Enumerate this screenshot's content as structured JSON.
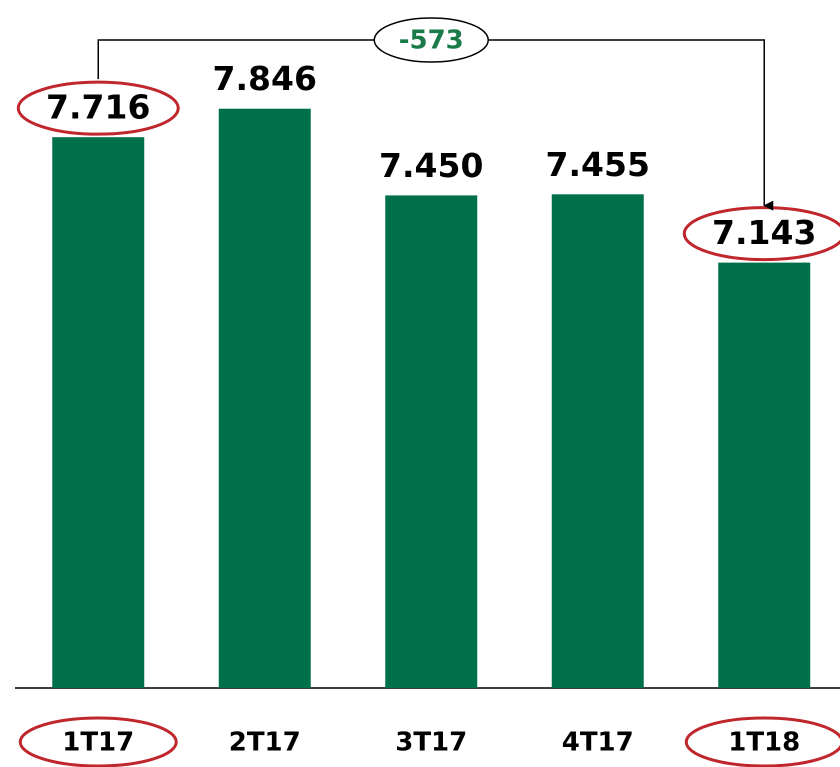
{
  "chart_data": {
    "type": "bar",
    "categories": [
      "1T17",
      "2T17",
      "3T17",
      "4T17",
      "1T18"
    ],
    "values": [
      7716,
      7846,
      7450,
      7455,
      7143
    ],
    "value_labels": [
      "7.716",
      "7.846",
      "7.450",
      "7.455",
      "7.143"
    ],
    "color": "#00704a",
    "ylim": [
      5200,
      8000
    ],
    "highlight": [
      0,
      4
    ],
    "highlight_color": "#c0272d",
    "annotation": "-573"
  }
}
